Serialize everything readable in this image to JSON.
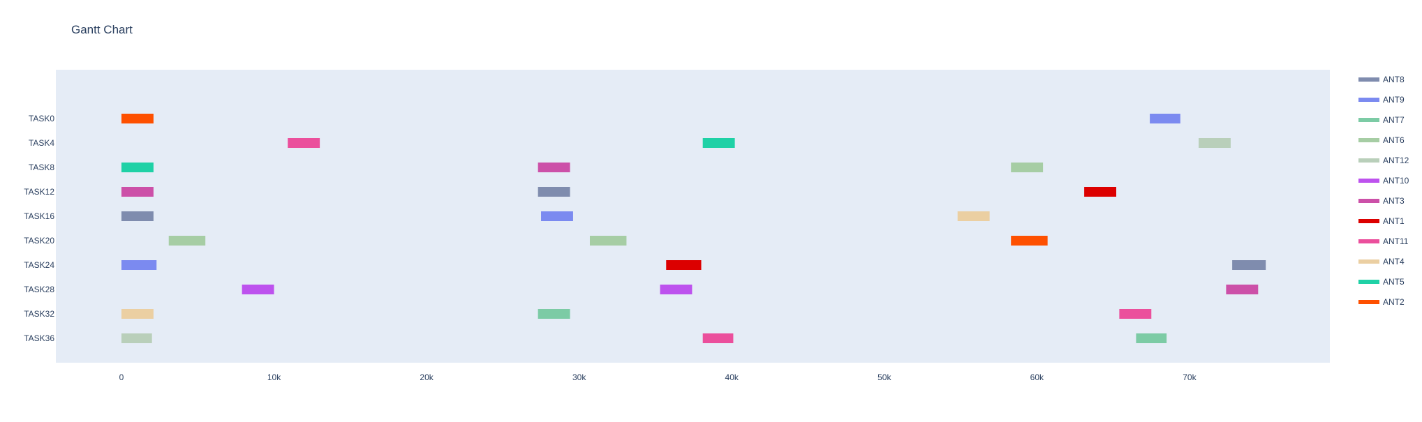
{
  "chart_data": {
    "type": "gantt",
    "title": "Gantt Chart",
    "xlabel": "",
    "ylabel": "",
    "xlim": [
      -4300,
      79200
    ],
    "x_ticks": [
      0,
      10000,
      20000,
      30000,
      40000,
      50000,
      60000,
      70000
    ],
    "x_tick_labels": [
      "0",
      "10k",
      "20k",
      "30k",
      "40k",
      "50k",
      "60k",
      "70k"
    ],
    "categories": [
      "TASK0",
      "TASK4",
      "TASK8",
      "TASK12",
      "TASK16",
      "TASK20",
      "TASK24",
      "TASK28",
      "TASK32",
      "TASK36"
    ],
    "grid": false,
    "legend_position": "right",
    "series": [
      {
        "name": "ANT8",
        "color": "#7f8cae",
        "tasks": [
          {
            "task": "TASK16",
            "start": 0,
            "end": 2100
          },
          {
            "task": "TASK12",
            "start": 27300,
            "end": 29400
          },
          {
            "task": "TASK24",
            "start": 72800,
            "end": 75000
          }
        ]
      },
      {
        "name": "ANT9",
        "color": "#7b8af0",
        "tasks": [
          {
            "task": "TASK24",
            "start": 0,
            "end": 2300
          },
          {
            "task": "TASK16",
            "start": 27500,
            "end": 29600
          },
          {
            "task": "TASK0",
            "start": 67400,
            "end": 69400
          }
        ]
      },
      {
        "name": "ANT7",
        "color": "#7ccba5",
        "tasks": [
          {
            "task": "TASK32",
            "start": 27300,
            "end": 29400
          },
          {
            "task": "TASK36",
            "start": 66500,
            "end": 68500
          }
        ]
      },
      {
        "name": "ANT6",
        "color": "#a6cda4",
        "tasks": [
          {
            "task": "TASK20",
            "start": 3100,
            "end": 5500
          },
          {
            "task": "TASK20",
            "start": 30700,
            "end": 33100
          },
          {
            "task": "TASK8",
            "start": 58300,
            "end": 60400
          }
        ]
      },
      {
        "name": "ANT12",
        "color": "#b9cfba",
        "tasks": [
          {
            "task": "TASK36",
            "start": 0,
            "end": 2000
          },
          {
            "task": "TASK4",
            "start": 70600,
            "end": 72700
          }
        ]
      },
      {
        "name": "ANT10",
        "color": "#bd52ee",
        "tasks": [
          {
            "task": "TASK28",
            "start": 7900,
            "end": 10000
          },
          {
            "task": "TASK28",
            "start": 35300,
            "end": 37400
          }
        ]
      },
      {
        "name": "ANT3",
        "color": "#cc50a8",
        "tasks": [
          {
            "task": "TASK12",
            "start": 0,
            "end": 2100
          },
          {
            "task": "TASK8",
            "start": 27300,
            "end": 29400
          },
          {
            "task": "TASK28",
            "start": 72400,
            "end": 74500
          }
        ]
      },
      {
        "name": "ANT1",
        "color": "#dc0000",
        "tasks": [
          {
            "task": "TASK24",
            "start": 35700,
            "end": 38000
          },
          {
            "task": "TASK12",
            "start": 63100,
            "end": 65200
          }
        ]
      },
      {
        "name": "ANT11",
        "color": "#eb4f9c",
        "tasks": [
          {
            "task": "TASK4",
            "start": 10900,
            "end": 13000
          },
          {
            "task": "TASK36",
            "start": 38100,
            "end": 40100
          },
          {
            "task": "TASK32",
            "start": 65400,
            "end": 67500
          }
        ]
      },
      {
        "name": "ANT4",
        "color": "#ebcfa2",
        "tasks": [
          {
            "task": "TASK32",
            "start": 0,
            "end": 2100
          },
          {
            "task": "TASK16",
            "start": 54800,
            "end": 56900
          }
        ]
      },
      {
        "name": "ANT5",
        "color": "#1fd1a6",
        "tasks": [
          {
            "task": "TASK8",
            "start": 0,
            "end": 2100
          },
          {
            "task": "TASK4",
            "start": 38100,
            "end": 40200
          }
        ]
      },
      {
        "name": "ANT2",
        "color": "#fe5000",
        "tasks": [
          {
            "task": "TASK0",
            "start": 0,
            "end": 2100
          },
          {
            "task": "TASK20",
            "start": 58300,
            "end": 60700
          }
        ]
      }
    ]
  },
  "colors": {
    "plot_bg": "#e5ecf6",
    "text": "#2a3f5f"
  }
}
